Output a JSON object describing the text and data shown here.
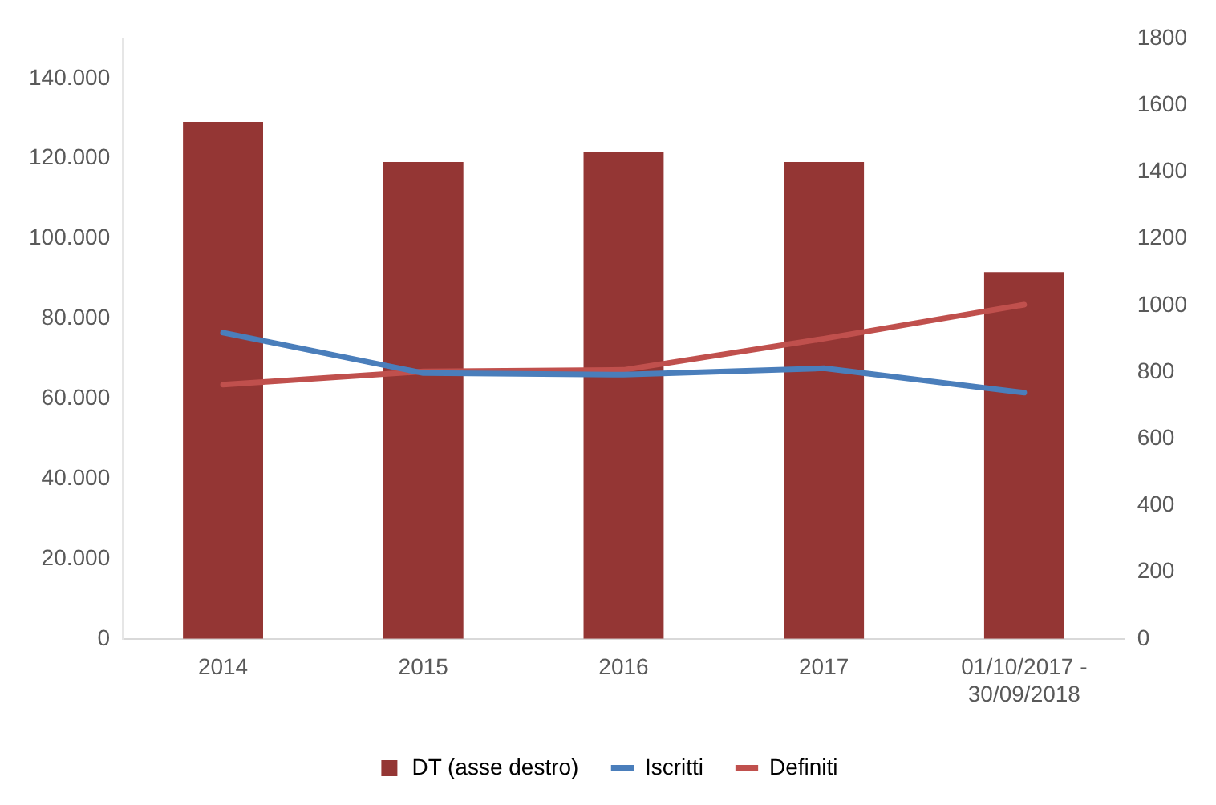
{
  "chart_data": {
    "type": "bar",
    "categories": [
      "2014",
      "2015",
      "2016",
      "2017",
      "01/10/2017 - 30/09/2018"
    ],
    "series": [
      {
        "name": "DT (asse destro)",
        "axis": "y2",
        "color": "#943634",
        "values": [
          1550,
          1430,
          1460,
          1430,
          1100
        ]
      },
      {
        "name": "Iscritti",
        "type": "line",
        "color": "#4a7ebb",
        "values": [
          76500,
          66400,
          66000,
          67600,
          61500
        ]
      },
      {
        "name": "Definiti",
        "type": "line",
        "color": "#c0504d",
        "values": [
          63500,
          66800,
          67200,
          75000,
          83500
        ]
      }
    ],
    "ylim": [
      0,
      150000
    ],
    "yticks": [
      {
        "value": 0,
        "label": "0"
      },
      {
        "value": 20000,
        "label": "20.000"
      },
      {
        "value": 40000,
        "label": "40.000"
      },
      {
        "value": 60000,
        "label": "60.000"
      },
      {
        "value": 80000,
        "label": "80.000"
      },
      {
        "value": 100000,
        "label": "100.000"
      },
      {
        "value": 120000,
        "label": "120.000"
      },
      {
        "value": 140000,
        "label": "140.000"
      }
    ],
    "y2lim": [
      0,
      1800
    ],
    "y2ticks": [
      0,
      200,
      400,
      600,
      800,
      1000,
      1200,
      1400,
      1600,
      1800
    ],
    "grid": false,
    "legend": "bottom",
    "marker": "none",
    "line_style": "solid"
  }
}
